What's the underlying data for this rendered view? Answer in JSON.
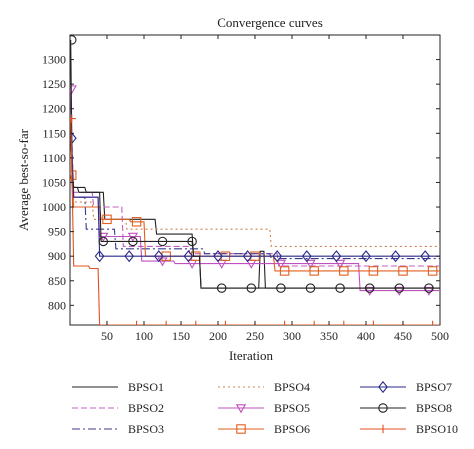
{
  "chart_data": {
    "type": "line",
    "title": "Convergence curves",
    "xlabel": "Iteration",
    "ylabel": "Average best-so-far",
    "xlim": [
      0,
      500
    ],
    "ylim": [
      760,
      1350
    ],
    "xticks": [
      50,
      100,
      150,
      200,
      250,
      300,
      350,
      400,
      450,
      500
    ],
    "yticks": [
      800,
      850,
      900,
      950,
      1000,
      1050,
      1100,
      1150,
      1200,
      1250,
      1300
    ],
    "grid": false,
    "legend_position": "bottom",
    "series": [
      {
        "name": "BPSO1",
        "color": "#222222",
        "dash": "solid",
        "marker": "none",
        "x": [
          1,
          3,
          5,
          20,
          22,
          45,
          47,
          115,
          117,
          165,
          167,
          175,
          177,
          255,
          257,
          262,
          264,
          500
        ],
        "y": [
          1180,
          1050,
          1040,
          1040,
          1030,
          1030,
          975,
          975,
          945,
          945,
          900,
          900,
          835,
          835,
          910,
          910,
          835,
          835
        ]
      },
      {
        "name": "BPSO2",
        "color": "#c060c0",
        "dash": "6,3",
        "marker": "none",
        "x": [
          1,
          3,
          5,
          30,
          32,
          70,
          72,
          160,
          162,
          280,
          282,
          500
        ],
        "y": [
          1180,
          1120,
          1030,
          1030,
          1000,
          1000,
          920,
          920,
          905,
          905,
          880,
          880
        ]
      },
      {
        "name": "BPSO3",
        "color": "#3a3a8a",
        "dash": "8,3,2,3",
        "marker": "none",
        "x": [
          1,
          3,
          5,
          20,
          22,
          60,
          62,
          180,
          182,
          270,
          272,
          500
        ],
        "y": [
          1140,
          1080,
          1020,
          1020,
          955,
          955,
          915,
          915,
          905,
          905,
          895,
          895
        ]
      },
      {
        "name": "BPSO4",
        "color": "#d08050",
        "dash": "2,3",
        "marker": "none",
        "x": [
          1,
          3,
          5,
          30,
          32,
          75,
          77,
          270,
          272,
          500
        ],
        "y": [
          1150,
          1060,
          1010,
          1010,
          975,
          975,
          955,
          955,
          920,
          920
        ]
      },
      {
        "name": "BPSO5",
        "color": "#c050c0",
        "dash": "solid",
        "marker": "triangle-down",
        "x": [
          1,
          3,
          5,
          38,
          40,
          95,
          97,
          140,
          142,
          390,
          392,
          500
        ],
        "y": [
          1240,
          1100,
          1020,
          1020,
          940,
          940,
          890,
          890,
          885,
          885,
          830,
          830
        ]
      },
      {
        "name": "BPSO6",
        "color": "#e06020",
        "dash": "solid",
        "marker": "square",
        "x": [
          1,
          3,
          5,
          40,
          42,
          80,
          82,
          100,
          102,
          275,
          277,
          500
        ],
        "y": [
          1065,
          1045,
          1000,
          1000,
          975,
          975,
          970,
          970,
          900,
          900,
          870,
          870
        ]
      },
      {
        "name": "BPSO7",
        "color": "#2a2a8a",
        "dash": "solid",
        "marker": "diamond",
        "x": [
          1,
          3,
          5,
          38,
          40,
          500
        ],
        "y": [
          1140,
          1090,
          1020,
          1020,
          900,
          900
        ]
      },
      {
        "name": "BPSO8",
        "color": "#222222",
        "dash": "solid",
        "marker": "circle",
        "x": [
          1,
          3,
          5,
          10,
          12,
          40,
          42,
          165,
          167,
          175,
          177,
          500
        ],
        "y": [
          1340,
          1060,
          1040,
          1040,
          1030,
          1030,
          930,
          930,
          900,
          900,
          835,
          835
        ]
      },
      {
        "name": "BPSO10",
        "color": "#e05020",
        "dash": "solid",
        "marker": "plus",
        "x": [
          1,
          3,
          5,
          25,
          27,
          38,
          40,
          500
        ],
        "y": [
          1180,
          1040,
          880,
          880,
          875,
          875,
          760,
          760
        ]
      }
    ]
  }
}
